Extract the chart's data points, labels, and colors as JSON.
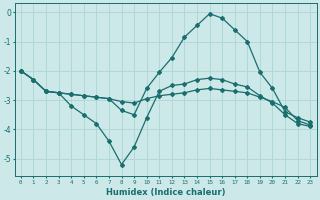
{
  "xlabel": "Humidex (Indice chaleur)",
  "xlim": [
    -0.5,
    23.5
  ],
  "ylim": [
    -5.6,
    0.3
  ],
  "yticks": [
    0,
    -1,
    -2,
    -3,
    -4,
    -5
  ],
  "xticks": [
    0,
    1,
    2,
    3,
    4,
    5,
    6,
    7,
    8,
    9,
    10,
    11,
    12,
    13,
    14,
    15,
    16,
    17,
    18,
    19,
    20,
    21,
    22,
    23
  ],
  "bg_color": "#cce8e8",
  "grid_color": "#b0d8d8",
  "line_color": "#1a6e6e",
  "line1_x": [
    0,
    1,
    2,
    3,
    4,
    5,
    6,
    7,
    8,
    9,
    10,
    11,
    12,
    13,
    14,
    15,
    16,
    17,
    18,
    19,
    20,
    21,
    22,
    23
  ],
  "line1_y": [
    -2.0,
    -2.3,
    -2.7,
    -2.75,
    -3.2,
    -3.5,
    -3.8,
    -4.4,
    -5.2,
    -4.6,
    -3.6,
    -2.7,
    -2.5,
    -2.45,
    -2.3,
    -2.25,
    -2.3,
    -2.45,
    -2.55,
    -2.85,
    -3.1,
    -3.5,
    -3.8,
    -3.9
  ],
  "line2_x": [
    0,
    1,
    2,
    3,
    4,
    5,
    6,
    7,
    8,
    9,
    10,
    11,
    12,
    13,
    14,
    15,
    16,
    17,
    18,
    19,
    20,
    21,
    22,
    23
  ],
  "line2_y": [
    -2.0,
    -2.3,
    -2.7,
    -2.75,
    -2.8,
    -2.85,
    -2.9,
    -2.95,
    -3.35,
    -3.5,
    -2.6,
    -2.05,
    -1.55,
    -0.85,
    -0.45,
    -0.05,
    -0.2,
    -0.6,
    -1.0,
    -2.05,
    -2.6,
    -3.4,
    -3.6,
    -3.75
  ],
  "line3_x": [
    0,
    1,
    2,
    3,
    4,
    5,
    6,
    7,
    8,
    9,
    10,
    11,
    12,
    13,
    14,
    15,
    16,
    17,
    18,
    19,
    20,
    21,
    22,
    23
  ],
  "line3_y": [
    -2.0,
    -2.3,
    -2.7,
    -2.75,
    -2.8,
    -2.85,
    -2.9,
    -2.95,
    -3.05,
    -3.1,
    -2.95,
    -2.85,
    -2.8,
    -2.75,
    -2.65,
    -2.6,
    -2.65,
    -2.7,
    -2.75,
    -2.9,
    -3.05,
    -3.25,
    -3.7,
    -3.85
  ]
}
